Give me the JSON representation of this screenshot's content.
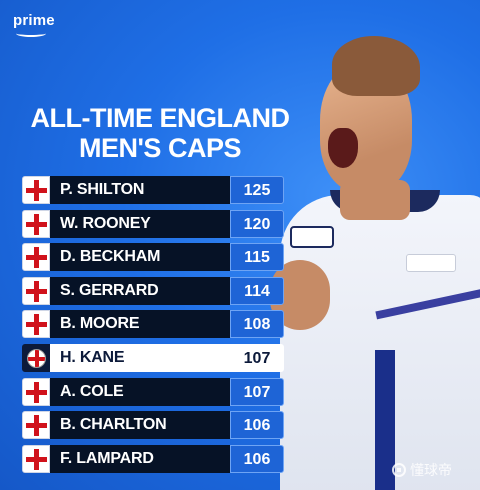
{
  "brand": {
    "logo_text": "prime"
  },
  "title": {
    "line1": "ALL-TIME ENGLAND",
    "line2": "MEN'S CAPS"
  },
  "colors": {
    "background": "#1f6fe6",
    "name_cell": "#061226",
    "value_cell": "#1e64d6",
    "flag_red": "#d0121b",
    "highlight": "#ffffff"
  },
  "table": {
    "rows": [
      {
        "name": "P. SHILTON",
        "caps": "125",
        "flag": "england-cross-icon",
        "highlight": false
      },
      {
        "name": "W. ROONEY",
        "caps": "120",
        "flag": "england-cross-icon",
        "highlight": false
      },
      {
        "name": "D. BECKHAM",
        "caps": "115",
        "flag": "england-cross-icon",
        "highlight": false
      },
      {
        "name": "S. GERRARD",
        "caps": "114",
        "flag": "england-cross-icon",
        "highlight": false
      },
      {
        "name": "B. MOORE",
        "caps": "108",
        "flag": "england-cross-icon",
        "highlight": false
      },
      {
        "name": "H. KANE",
        "caps": "107",
        "flag": "england-round-flag-icon",
        "highlight": true
      },
      {
        "name": "A. COLE",
        "caps": "107",
        "flag": "england-cross-icon",
        "highlight": false
      },
      {
        "name": "B. CHARLTON",
        "caps": "106",
        "flag": "england-cross-icon",
        "highlight": false
      },
      {
        "name": "F. LAMPARD",
        "caps": "106",
        "flag": "england-cross-icon",
        "highlight": false
      }
    ]
  },
  "watermark": {
    "text": "懂球帝",
    "icon": "football-icon"
  }
}
